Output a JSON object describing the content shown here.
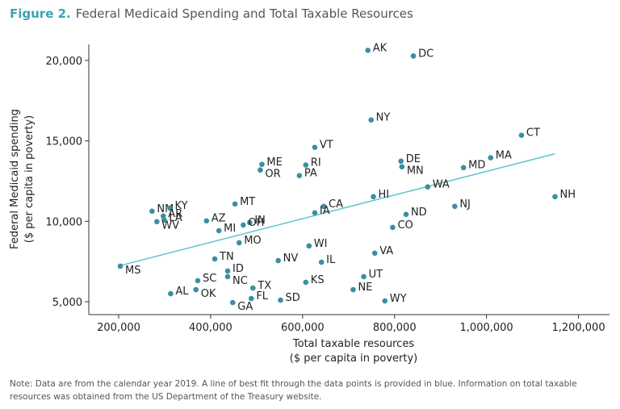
{
  "chart_data": {
    "type": "scatter",
    "title_prefix": "Figure 2.",
    "title": "Federal Medicaid Spending and Total Taxable Resources",
    "x_label": [
      "Total taxable resources",
      "($ per capita in poverty)"
    ],
    "y_label": [
      "Federal Medicaid spending",
      "($ per capita in poverty)"
    ],
    "note": "Note: Data are from the calendar year 2019. A line of best fit through the data points is provided in blue. Information on total taxable resources was obtained from the US Department of the Treasury website.",
    "color": "#3b8fa0",
    "fit_line": {
      "x": [
        203500,
        1149000
      ],
      "y": [
        7250,
        14200
      ],
      "color": "#5bc4cf"
    },
    "point_labels": [
      "AK",
      "DC",
      "NY",
      "CT",
      "VT",
      "ME",
      "OR",
      "RI",
      "PA",
      "DE",
      "MN",
      "MA",
      "MD",
      "WA",
      "HI",
      "NH",
      "NJ",
      "CA",
      "IA",
      "ND",
      "CO",
      "MT",
      "NM",
      "KY",
      "AR",
      "LA",
      "WV",
      "AZ",
      "IN",
      "OH",
      "MI",
      "MO",
      "WI",
      "VA",
      "TN",
      "NV",
      "IL",
      "MS",
      "ID",
      "NC",
      "SC",
      "UT",
      "KS",
      "OK",
      "NE",
      "AL",
      "TX",
      "FL",
      "SD",
      "GA",
      "WY"
    ],
    "x": [
      742000,
      841000,
      749000,
      1076000,
      626500,
      511500,
      508000,
      607000,
      593000,
      814000,
      816000,
      1009000,
      950000,
      872000,
      754000,
      1149000,
      931000,
      646000,
      626500,
      825000,
      796000,
      453000,
      272600,
      311500,
      297000,
      299000,
      283000,
      391000,
      485000,
      471000,
      418000,
      462000,
      614000,
      757000,
      409000,
      547000,
      641000,
      203500,
      437000,
      437000,
      372000,
      733000,
      607000,
      368000,
      710000,
      313000,
      492000,
      488500,
      552000,
      448000,
      779000
    ],
    "y": [
      20630,
      20280,
      16300,
      15350,
      14600,
      13540,
      13190,
      13500,
      12840,
      13740,
      13390,
      13950,
      13340,
      12140,
      11530,
      11530,
      10930,
      10930,
      10530,
      10430,
      9620,
      11080,
      10630,
      10830,
      10330,
      10080,
      9980,
      10030,
      9920,
      9770,
      9420,
      8670,
      8470,
      8020,
      7660,
      7560,
      7460,
      7210,
      6910,
      6560,
      6310,
      6560,
      6210,
      5750,
      5750,
      5500,
      5850,
      5200,
      5100,
      4950,
      5050
    ],
    "xlim": [
      135000,
      1250000
    ],
    "ylim": [
      4200,
      21000
    ],
    "xticks": [
      {
        "value": 200000,
        "label": "200,000"
      },
      {
        "value": 400000,
        "label": "400,000"
      },
      {
        "value": 600000,
        "label": "600,000"
      },
      {
        "value": 800000,
        "label": "800,000"
      },
      {
        "value": 1000000,
        "label": "1,000,000"
      },
      {
        "value": 1200000,
        "label": "1,200,000"
      }
    ],
    "yticks": [
      {
        "value": 5000,
        "label": "5,000"
      },
      {
        "value": 10000,
        "label": "10,000"
      },
      {
        "value": 15000,
        "label": "15,000"
      },
      {
        "value": 20000,
        "label": "20,000"
      }
    ]
  }
}
